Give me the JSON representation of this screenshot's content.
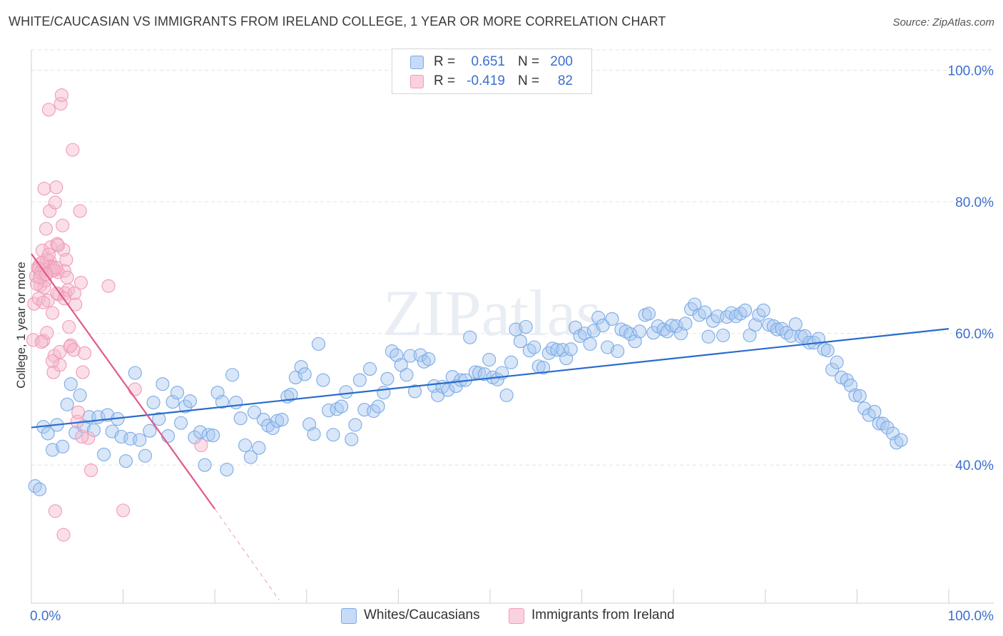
{
  "title": "WHITE/CAUCASIAN VS IMMIGRANTS FROM IRELAND COLLEGE, 1 YEAR OR MORE CORRELATION CHART",
  "source": "Source: ZipAtlas.com",
  "watermark": "ZIPatlas",
  "legend": {
    "rows": [
      {
        "r_label": "R =",
        "r_value": "0.651",
        "n_label": "N =",
        "n_value": "200",
        "color": "#a9c8f0"
      },
      {
        "r_label": "R =",
        "r_value": "-0.419",
        "n_label": "N =",
        "n_value": "82",
        "color": "#f5b8cc"
      }
    ]
  },
  "bottom_legend": [
    {
      "label": "Whites/Caucasians",
      "color": "#a9c8f0"
    },
    {
      "label": "Immigrants from Ireland",
      "color": "#f5b8cc"
    }
  ],
  "chart_data": {
    "type": "scatter",
    "title": "WHITE/CAUCASIAN VS IMMIGRANTS FROM IRELAND COLLEGE, 1 YEAR OR MORE CORRELATION CHART",
    "xlabel": "",
    "ylabel": "College, 1 year or more",
    "xlim": [
      0,
      100
    ],
    "ylim": [
      19,
      102
    ],
    "x_tick_labels": [
      "0.0%",
      "100.0%"
    ],
    "y_ticks": [
      40,
      60,
      80,
      100
    ],
    "y_tick_labels": [
      "40.0%",
      "60.0%",
      "80.0%",
      "100.0%"
    ],
    "grid": true,
    "series": [
      {
        "name": "Whites/Caucasians",
        "color": "#7aaae6",
        "line_color": "#2a6bcc",
        "trend": {
          "x": [
            0,
            100
          ],
          "y": [
            45.7,
            60.7
          ]
        },
        "points": [
          [
            0.4,
            36.8
          ],
          [
            0.9,
            36.3
          ],
          [
            1.3,
            45.8
          ],
          [
            1.8,
            44.8
          ],
          [
            2.3,
            42.3
          ],
          [
            2.8,
            46.1
          ],
          [
            3.4,
            42.8
          ],
          [
            3.9,
            49.2
          ],
          [
            4.3,
            52.3
          ],
          [
            4.8,
            44.9
          ],
          [
            5.3,
            50.6
          ],
          [
            5.7,
            45.9
          ],
          [
            6.3,
            47.3
          ],
          [
            6.8,
            45.3
          ],
          [
            7.3,
            47.3
          ],
          [
            7.9,
            41.6
          ],
          [
            8.3,
            47.6
          ],
          [
            8.8,
            45.1
          ],
          [
            9.4,
            47.0
          ],
          [
            9.8,
            44.3
          ],
          [
            10.3,
            40.6
          ],
          [
            10.8,
            44.0
          ],
          [
            11.3,
            54.0
          ],
          [
            11.8,
            43.8
          ],
          [
            12.4,
            41.4
          ],
          [
            12.9,
            45.2
          ],
          [
            13.3,
            49.5
          ],
          [
            13.9,
            47.0
          ],
          [
            14.3,
            52.3
          ],
          [
            14.9,
            44.4
          ],
          [
            15.4,
            49.6
          ],
          [
            15.9,
            51.0
          ],
          [
            16.3,
            46.4
          ],
          [
            16.8,
            48.9
          ],
          [
            17.3,
            49.7
          ],
          [
            17.8,
            44.2
          ],
          [
            18.4,
            45.0
          ],
          [
            18.9,
            40.0
          ],
          [
            19.3,
            44.6
          ],
          [
            19.8,
            44.5
          ],
          [
            20.3,
            51.0
          ],
          [
            20.8,
            49.6
          ],
          [
            21.3,
            39.3
          ],
          [
            21.9,
            53.7
          ],
          [
            22.3,
            49.5
          ],
          [
            22.8,
            47.1
          ],
          [
            23.3,
            43.0
          ],
          [
            23.9,
            41.2
          ],
          [
            24.3,
            48.0
          ],
          [
            24.8,
            42.6
          ],
          [
            25.3,
            46.9
          ],
          [
            25.8,
            46.0
          ],
          [
            26.3,
            45.6
          ],
          [
            26.8,
            46.7
          ],
          [
            27.3,
            46.9
          ],
          [
            27.9,
            50.4
          ],
          [
            28.3,
            50.7
          ],
          [
            28.8,
            53.3
          ],
          [
            29.4,
            54.9
          ],
          [
            29.8,
            53.8
          ],
          [
            30.3,
            46.2
          ],
          [
            30.8,
            44.7
          ],
          [
            31.3,
            58.4
          ],
          [
            31.8,
            52.9
          ],
          [
            32.4,
            48.3
          ],
          [
            32.9,
            44.6
          ],
          [
            33.3,
            48.5
          ],
          [
            33.8,
            48.9
          ],
          [
            34.3,
            51.1
          ],
          [
            34.9,
            43.9
          ],
          [
            35.3,
            46.1
          ],
          [
            35.8,
            52.9
          ],
          [
            36.3,
            48.4
          ],
          [
            36.9,
            54.6
          ],
          [
            37.3,
            48.2
          ],
          [
            37.8,
            48.9
          ],
          [
            38.4,
            51.0
          ],
          [
            38.8,
            53.1
          ],
          [
            39.3,
            57.3
          ],
          [
            39.8,
            56.7
          ],
          [
            40.3,
            55.2
          ],
          [
            40.9,
            53.7
          ],
          [
            41.3,
            56.6
          ],
          [
            41.8,
            51.2
          ],
          [
            42.4,
            56.7
          ],
          [
            42.8,
            55.7
          ],
          [
            43.3,
            56.1
          ],
          [
            43.9,
            52.0
          ],
          [
            44.3,
            50.6
          ],
          [
            44.8,
            51.9
          ],
          [
            45.4,
            51.4
          ],
          [
            45.9,
            53.4
          ],
          [
            46.3,
            52.0
          ],
          [
            46.8,
            52.9
          ],
          [
            47.3,
            52.9
          ],
          [
            47.8,
            59.4
          ],
          [
            48.4,
            54.1
          ],
          [
            48.8,
            54.0
          ],
          [
            49.4,
            53.8
          ],
          [
            49.9,
            56.0
          ],
          [
            50.3,
            53.3
          ],
          [
            50.8,
            53.0
          ],
          [
            51.3,
            54.0
          ],
          [
            51.8,
            50.6
          ],
          [
            52.3,
            55.6
          ],
          [
            52.8,
            60.6
          ],
          [
            53.3,
            58.8
          ],
          [
            53.9,
            61.0
          ],
          [
            54.3,
            57.4
          ],
          [
            54.8,
            57.9
          ],
          [
            55.3,
            55.0
          ],
          [
            55.8,
            54.8
          ],
          [
            56.4,
            57.0
          ],
          [
            56.8,
            57.7
          ],
          [
            57.3,
            57.5
          ],
          [
            57.9,
            57.5
          ],
          [
            58.3,
            56.2
          ],
          [
            58.8,
            57.6
          ],
          [
            59.3,
            60.9
          ],
          [
            59.8,
            59.6
          ],
          [
            60.3,
            60.0
          ],
          [
            60.9,
            58.4
          ],
          [
            61.3,
            60.4
          ],
          [
            61.8,
            62.4
          ],
          [
            62.3,
            61.2
          ],
          [
            62.8,
            57.9
          ],
          [
            63.3,
            62.2
          ],
          [
            63.9,
            57.3
          ],
          [
            64.3,
            60.6
          ],
          [
            64.8,
            60.3
          ],
          [
            65.3,
            59.9
          ],
          [
            65.8,
            58.8
          ],
          [
            66.3,
            60.3
          ],
          [
            66.9,
            62.8
          ],
          [
            67.3,
            63.0
          ],
          [
            67.8,
            60.1
          ],
          [
            68.3,
            61.1
          ],
          [
            68.9,
            60.6
          ],
          [
            69.3,
            60.3
          ],
          [
            69.8,
            61.2
          ],
          [
            70.3,
            61.1
          ],
          [
            70.8,
            60.0
          ],
          [
            71.3,
            61.5
          ],
          [
            71.9,
            63.7
          ],
          [
            72.3,
            64.4
          ],
          [
            72.8,
            62.8
          ],
          [
            73.4,
            63.2
          ],
          [
            73.8,
            59.5
          ],
          [
            74.3,
            61.9
          ],
          [
            74.8,
            62.6
          ],
          [
            75.4,
            59.7
          ],
          [
            75.8,
            62.5
          ],
          [
            76.3,
            63.1
          ],
          [
            76.8,
            62.6
          ],
          [
            77.3,
            63.0
          ],
          [
            77.8,
            63.5
          ],
          [
            78.3,
            59.7
          ],
          [
            78.9,
            61.3
          ],
          [
            79.3,
            62.8
          ],
          [
            79.8,
            63.5
          ],
          [
            80.4,
            61.3
          ],
          [
            80.9,
            61.1
          ],
          [
            81.3,
            60.6
          ],
          [
            81.8,
            60.7
          ],
          [
            82.3,
            60.1
          ],
          [
            82.8,
            59.6
          ],
          [
            83.3,
            61.4
          ],
          [
            83.9,
            59.5
          ],
          [
            84.3,
            59.6
          ],
          [
            84.8,
            58.6
          ],
          [
            85.3,
            58.6
          ],
          [
            85.8,
            59.2
          ],
          [
            86.4,
            57.6
          ],
          [
            86.8,
            57.4
          ],
          [
            87.3,
            54.5
          ],
          [
            87.8,
            55.6
          ],
          [
            88.3,
            53.3
          ],
          [
            88.9,
            52.9
          ],
          [
            89.3,
            52.1
          ],
          [
            89.8,
            50.6
          ],
          [
            90.3,
            50.5
          ],
          [
            90.8,
            48.6
          ],
          [
            91.3,
            47.6
          ],
          [
            91.9,
            48.1
          ],
          [
            92.4,
            46.3
          ],
          [
            92.8,
            46.3
          ],
          [
            93.3,
            45.7
          ],
          [
            93.9,
            44.8
          ],
          [
            94.3,
            43.4
          ],
          [
            94.8,
            43.8
          ]
        ]
      },
      {
        "name": "Immigrants from Ireland",
        "color": "#f09ab8",
        "line_color": "#e05a8a",
        "trend": {
          "x": [
            0,
            20
          ],
          "y": [
            72.1,
            33.3
          ]
        },
        "trend_extension": {
          "x": [
            20,
            27
          ],
          "y": [
            33.3,
            19.5
          ]
        },
        "points": [
          [
            0.2,
            59.0
          ],
          [
            0.3,
            64.5
          ],
          [
            0.5,
            68.7
          ],
          [
            0.7,
            70.0
          ],
          [
            0.8,
            65.3
          ],
          [
            0.9,
            70.5
          ],
          [
            1.0,
            67.3
          ],
          [
            1.1,
            69.5
          ],
          [
            1.2,
            72.6
          ],
          [
            1.3,
            58.9
          ],
          [
            1.4,
            82.0
          ],
          [
            1.5,
            68.0
          ],
          [
            1.6,
            75.9
          ],
          [
            1.7,
            71.2
          ],
          [
            1.8,
            65.0
          ],
          [
            1.9,
            94.0
          ],
          [
            2.0,
            78.6
          ],
          [
            2.1,
            73.1
          ],
          [
            2.2,
            69.9
          ],
          [
            2.3,
            63.1
          ],
          [
            2.4,
            54.1
          ],
          [
            2.5,
            56.6
          ],
          [
            2.6,
            79.9
          ],
          [
            2.7,
            82.2
          ],
          [
            2.8,
            73.6
          ],
          [
            2.9,
            69.3
          ],
          [
            3.0,
            65.9
          ],
          [
            3.1,
            55.2
          ],
          [
            3.2,
            94.9
          ],
          [
            3.3,
            96.2
          ],
          [
            3.4,
            76.4
          ],
          [
            3.5,
            72.7
          ],
          [
            3.6,
            69.5
          ],
          [
            3.7,
            66.1
          ],
          [
            3.8,
            71.2
          ],
          [
            3.9,
            68.5
          ],
          [
            4.0,
            66.6
          ],
          [
            4.1,
            61.0
          ],
          [
            4.3,
            58.2
          ],
          [
            4.5,
            87.9
          ],
          [
            4.7,
            66.1
          ],
          [
            4.8,
            64.4
          ],
          [
            5.0,
            46.6
          ],
          [
            5.1,
            48.0
          ],
          [
            5.3,
            78.6
          ],
          [
            5.4,
            67.7
          ],
          [
            5.6,
            54.1
          ],
          [
            5.8,
            57.0
          ],
          [
            6.2,
            44.1
          ],
          [
            6.5,
            39.2
          ],
          [
            1.4,
            67.0
          ],
          [
            1.7,
            60.1
          ],
          [
            2.0,
            71.0
          ],
          [
            2.3,
            55.8
          ],
          [
            2.6,
            33.0
          ],
          [
            3.1,
            57.2
          ],
          [
            3.5,
            29.4
          ],
          [
            4.2,
            58.0
          ],
          [
            5.5,
            44.3
          ],
          [
            8.4,
            67.2
          ],
          [
            10.0,
            33.1
          ],
          [
            11.3,
            51.5
          ],
          [
            18.5,
            43.0
          ],
          [
            1.1,
            58.7
          ],
          [
            1.3,
            64.7
          ],
          [
            1.5,
            69.8
          ],
          [
            2.1,
            70.2
          ],
          [
            2.2,
            69.5
          ],
          [
            2.4,
            70.0
          ],
          [
            2.5,
            69.6
          ],
          [
            2.7,
            70.0
          ],
          [
            1.0,
            69.2
          ],
          [
            0.8,
            69.8
          ],
          [
            0.6,
            67.5
          ],
          [
            1.2,
            70.8
          ],
          [
            1.9,
            72.0
          ],
          [
            2.8,
            66.1
          ],
          [
            3.6,
            65.3
          ],
          [
            4.6,
            57.5
          ],
          [
            0.9,
            68.5
          ],
          [
            1.6,
            69.0
          ],
          [
            2.9,
            73.4
          ]
        ]
      }
    ]
  }
}
